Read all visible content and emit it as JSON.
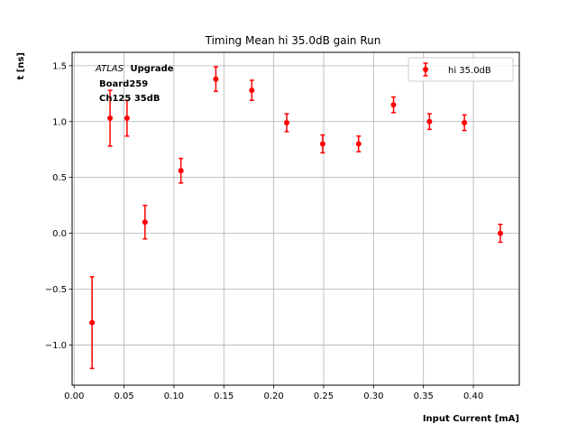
{
  "chart_data": {
    "type": "scatter",
    "title": "Timing Mean hi 35.0dB gain Run",
    "xlabel": "Input Current [mA]",
    "ylabel": "t [ns]",
    "xlim": [
      -0.002,
      0.446
    ],
    "ylim": [
      -1.36,
      1.62
    ],
    "xticks": [
      0.0,
      0.05,
      0.1,
      0.15,
      0.2,
      0.25,
      0.3,
      0.35,
      0.4
    ],
    "xtick_labels": [
      "0.00",
      "0.05",
      "0.10",
      "0.15",
      "0.20",
      "0.25",
      "0.30",
      "0.35",
      "0.40"
    ],
    "yticks": [
      -1.0,
      -0.5,
      0.0,
      0.5,
      1.0,
      1.5
    ],
    "ytick_labels": [
      "−1.0",
      "−0.5",
      "0.0",
      "0.5",
      "1.0",
      "1.5"
    ],
    "grid": true,
    "legend_placement": "top-right",
    "annotation": {
      "atlas": "ATLAS",
      "upgrade": "Upgrade",
      "line2": "Board259",
      "line3": "Ch125 35dB"
    },
    "series": [
      {
        "name": "hi 35.0dB",
        "color": "#ff0000",
        "x": [
          0.018,
          0.036,
          0.053,
          0.071,
          0.107,
          0.142,
          0.178,
          0.213,
          0.249,
          0.285,
          0.32,
          0.356,
          0.391,
          0.427
        ],
        "y": [
          -0.8,
          1.03,
          1.03,
          0.1,
          0.56,
          1.38,
          1.28,
          0.99,
          0.8,
          0.8,
          1.15,
          1.0,
          0.99,
          0.0
        ],
        "yerr": [
          0.41,
          0.25,
          0.16,
          0.15,
          0.11,
          0.11,
          0.09,
          0.08,
          0.08,
          0.07,
          0.07,
          0.07,
          0.07,
          0.08
        ]
      }
    ]
  }
}
